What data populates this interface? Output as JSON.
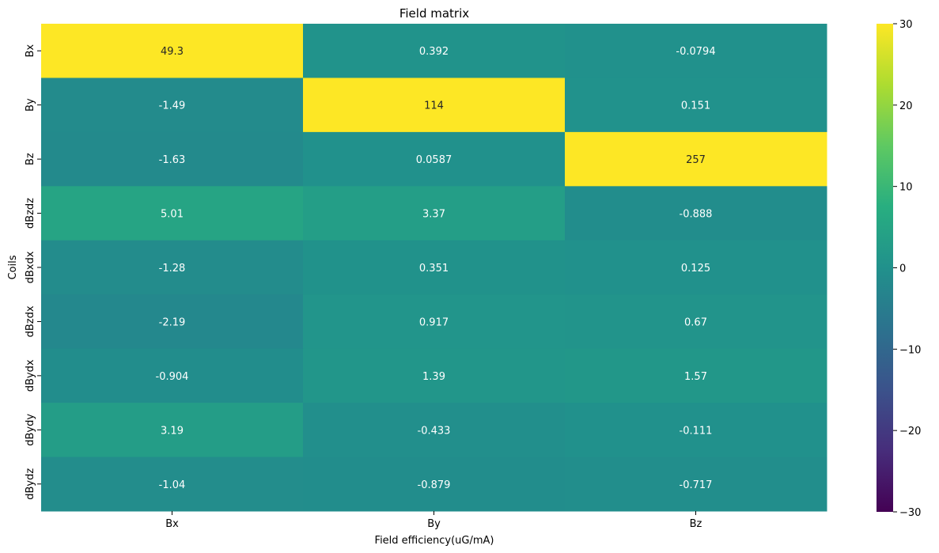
{
  "chart_data": {
    "type": "heatmap",
    "title": "Field matrix",
    "xlabel": "Field efficiency(uG/mA)",
    "ylabel": "Coils",
    "columns": [
      "Bx",
      "By",
      "Bz"
    ],
    "rows": [
      "Bx",
      "By",
      "Bz",
      "dBzdz",
      "dBxdx",
      "dBzdx",
      "dBydx",
      "dBydy",
      "dBydz"
    ],
    "cells": [
      [
        "49.3",
        "0.392",
        "-0.0794"
      ],
      [
        "-1.49",
        "114",
        "0.151"
      ],
      [
        "-1.63",
        "0.0587",
        "257"
      ],
      [
        "5.01",
        "3.37",
        "-0.888"
      ],
      [
        "-1.28",
        "0.351",
        "0.125"
      ],
      [
        "-2.19",
        "0.917",
        "0.67"
      ],
      [
        "-0.904",
        "1.39",
        "1.57"
      ],
      [
        "3.19",
        "-0.433",
        "-0.111"
      ],
      [
        "-1.04",
        "-0.879",
        "-0.717"
      ]
    ],
    "colormap": "viridis",
    "vmin": -30,
    "vmax": 30,
    "colorbar_ticks": [
      "30",
      "20",
      "10",
      "0",
      "−10",
      "−20",
      "−30"
    ],
    "colorbar_tick_values": [
      30,
      20,
      10,
      0,
      -10,
      -20,
      -30
    ],
    "grid": false
  }
}
